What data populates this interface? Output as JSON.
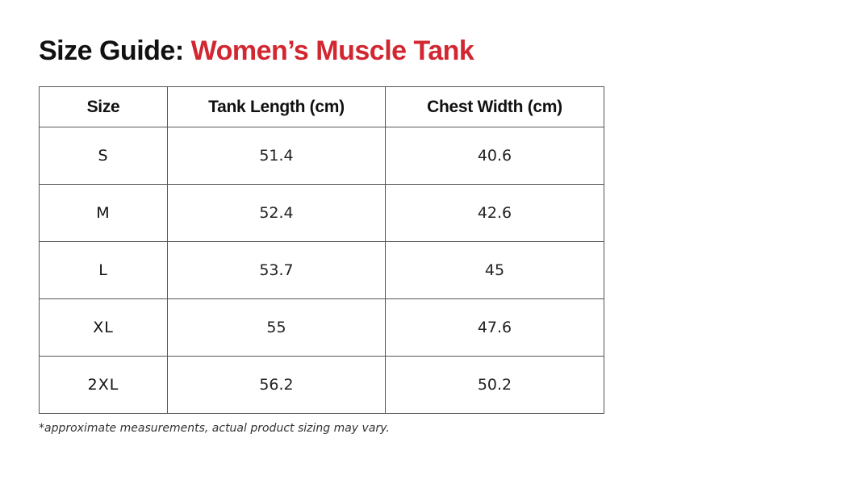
{
  "title": {
    "prefix": "Size Guide:",
    "product": "Women’s Muscle Tank"
  },
  "table": {
    "headers": {
      "size": "Size",
      "length": "Tank Length (cm)",
      "chest": "Chest Width (cm)"
    },
    "rows": [
      {
        "size": "S",
        "length": "51.4",
        "chest": "40.6"
      },
      {
        "size": "M",
        "length": "52.4",
        "chest": "42.6"
      },
      {
        "size": "L",
        "length": "53.7",
        "chest": "45"
      },
      {
        "size": "XL",
        "length": "55",
        "chest": "47.6"
      },
      {
        "size": "2XL",
        "length": "56.2",
        "chest": "50.2"
      }
    ]
  },
  "footnote": "*approximate measurements, actual product sizing may vary.",
  "colors": {
    "accent": "#d22630",
    "text": "#111111",
    "border": "#555555"
  }
}
